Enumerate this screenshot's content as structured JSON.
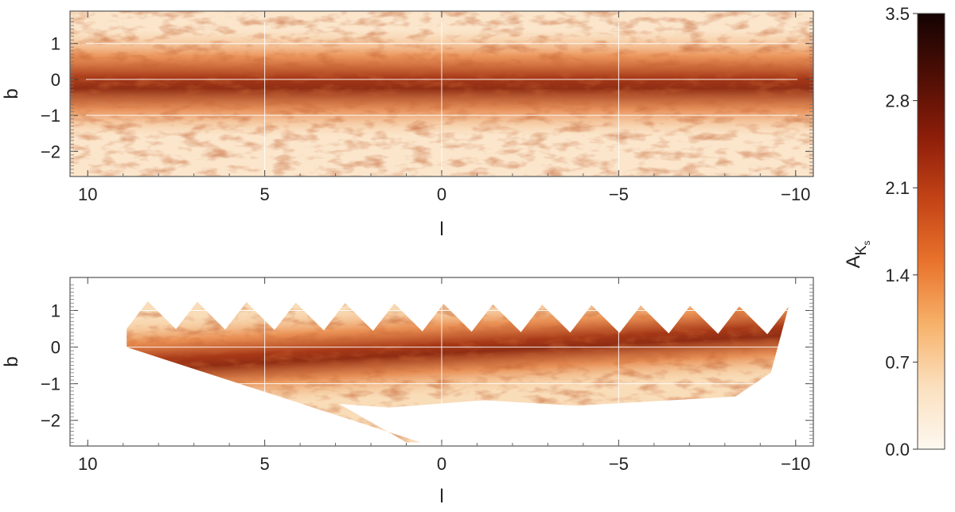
{
  "chart_data": [
    {
      "type": "heatmap",
      "panel": "top",
      "xlabel": "l",
      "ylabel": "b",
      "xlim": [
        10.5,
        -10.5
      ],
      "ylim": [
        -2.7,
        1.9
      ],
      "x_ticks": [
        10,
        5,
        0,
        -5,
        -10
      ],
      "x_tick_labels": [
        "10",
        "5",
        "0",
        "−5",
        "−10"
      ],
      "y_ticks": [
        1,
        0,
        -1,
        -2
      ],
      "y_tick_labels": [
        "1",
        "0",
        "−1",
        "−2"
      ],
      "grid": {
        "vertical_l": [
          5,
          0,
          -5
        ],
        "horizontal_b": [
          1,
          0,
          -1
        ],
        "color": "#ffffff"
      },
      "coverage": "full rectangle",
      "description_values": {
        "dust_lane_center_b": -0.1,
        "dust_lane_halfwidth_b": 0.75
      }
    },
    {
      "type": "heatmap",
      "panel": "bottom",
      "xlabel": "l",
      "ylabel": "b",
      "xlim": [
        10.5,
        -10.5
      ],
      "ylim": [
        -2.7,
        1.9
      ],
      "x_ticks": [
        10,
        5,
        0,
        -5,
        -10
      ],
      "x_tick_labels": [
        "10",
        "5",
        "0",
        "−5",
        "−10"
      ],
      "y_ticks": [
        1,
        0,
        -1,
        -2
      ],
      "y_tick_labels": [
        "1",
        "0",
        "−1",
        "−2"
      ],
      "grid": {
        "vertical_l": [
          5,
          0,
          -5
        ],
        "horizontal_b": [
          1,
          0,
          -1
        ],
        "color": "#ffffff"
      },
      "coverage": "tilted tiled mosaic"
    }
  ],
  "colorbar": {
    "label_main": "A",
    "label_sub": "K",
    "label_subsub": "s",
    "min": 0.0,
    "max": 3.5,
    "ticks": [
      0.0,
      0.7,
      1.4,
      2.1,
      2.8,
      3.5
    ],
    "tick_labels": [
      "0.0",
      "0.7",
      "1.4",
      "2.1",
      "2.8",
      "3.5"
    ],
    "colors": [
      "#fdf8f0",
      "#fbe0bf",
      "#f7b26a",
      "#e9732c",
      "#c44416",
      "#8e1e0a",
      "#4e0e05",
      "#140303"
    ]
  }
}
